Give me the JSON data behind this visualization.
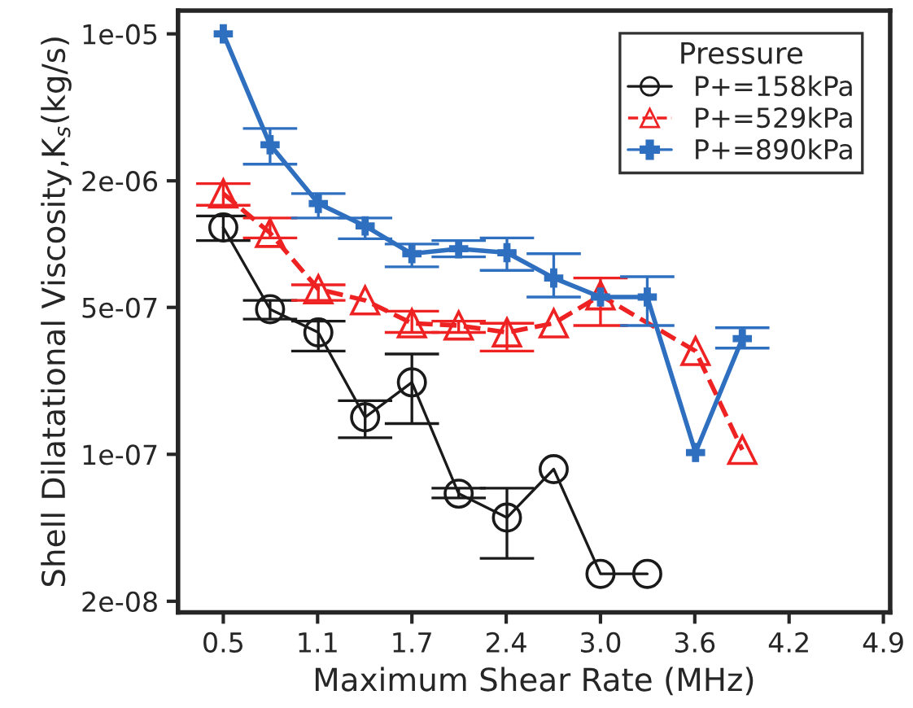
{
  "chart_data": {
    "type": "line",
    "xlabel": "Maximum Shear Rate (MHz)",
    "ylabel": "Shell Dilatational Viscosity,Κ$_{s}$(kg/s)",
    "legend_title": "Pressure",
    "legend": "top right",
    "log": "y",
    "grid": false,
    "xlim": [
      0.2,
      4.92
    ],
    "xticks": [
      0.5,
      {
        "value": 1.125,
        "label": "1.1"
      },
      {
        "value": 1.75,
        "label": "1.7"
      },
      {
        "value": 2.375,
        "label": "2.4"
      },
      {
        "value": 3.0,
        "label": "3.0"
      },
      {
        "value": 3.625,
        "label": "3.6"
      },
      {
        "value": 4.25,
        "label": "4.2"
      },
      {
        "value": 4.875,
        "label": "4.9"
      }
    ],
    "ylim": [
      1.77e-08,
      1.29e-05
    ],
    "yticks": [
      {
        "value": 1e-05,
        "label": "1e-05"
      },
      {
        "value": 2e-06,
        "label": "2e-06"
      },
      {
        "value": 5e-07,
        "label": "5e-07"
      },
      {
        "value": 1e-07,
        "label": "1e-07"
      },
      {
        "value": 2e-08,
        "label": "2e-08"
      }
    ],
    "series": [
      {
        "name": "P+=158kPa",
        "color": "#1a1a1a",
        "marker": "circle",
        "line_style": "solid",
        "x": [
          0.5,
          0.81,
          1.13,
          1.44,
          1.75,
          2.06,
          2.38,
          2.69,
          3.0,
          3.31
        ],
        "values": [
          1.2e-06,
          4.9e-07,
          3.8e-07,
          1.5e-07,
          2.2e-07,
          6.5e-08,
          5e-08,
          8.5e-08,
          2.7e-08,
          2.7e-08
        ],
        "errors": [
          [
            1.04e-06,
            1.36e-06
          ],
          [
            4.4e-07,
            5.4e-07
          ],
          [
            3.1e-07,
            4.3e-07
          ],
          [
            1.2e-07,
            1.8e-07
          ],
          [
            1.4e-07,
            3e-07
          ],
          [
            6.2e-08,
            6.9e-08
          ],
          [
            3.2e-08,
            6.9e-08
          ],
          null,
          null,
          null
        ]
      },
      {
        "name": "P+=529kPa",
        "color": "#ee2222",
        "marker": "triangle",
        "line_style": "dashed",
        "x": [
          0.5,
          0.81,
          1.13,
          1.44,
          1.75,
          2.06,
          2.38,
          2.69,
          3.0,
          3.63,
          3.94
        ],
        "values": [
          1.74e-06,
          1.13e-06,
          6.1e-07,
          5.4e-07,
          4.2e-07,
          4.1e-07,
          3.8e-07,
          4.2e-07,
          5.7e-07,
          3.1e-07,
          1.05e-07
        ],
        "errors": [
          [
            1.53e-06,
            1.94e-06
          ],
          [
            1.07e-06,
            1.33e-06
          ],
          [
            5.4e-07,
            6.4e-07
          ],
          null,
          [
            3.8e-07,
            4.8e-07
          ],
          [
            3.8e-07,
            4.3e-07
          ],
          [
            3.1e-07,
            4.2e-07
          ],
          null,
          [
            4.1e-07,
            6.9e-07
          ],
          null,
          null
        ]
      },
      {
        "name": "P+=890kPa",
        "color": "#2f6fc0",
        "marker": "cross",
        "line_style": "solid",
        "x": [
          0.5,
          0.81,
          1.13,
          1.44,
          1.75,
          2.06,
          2.38,
          2.69,
          3.0,
          3.31,
          3.63,
          3.94
        ],
        "values": [
          1e-05,
          2.97e-06,
          1.56e-06,
          1.22e-06,
          9e-07,
          9.5e-07,
          9.1e-07,
          6.9e-07,
          5.6e-07,
          5.6e-07,
          1.02e-07,
          3.55e-07
        ],
        "errors": [
          null,
          [
            2.4e-06,
            3.55e-06
          ],
          [
            1.33e-06,
            1.74e-06
          ],
          [
            1.06e-06,
            1.33e-06
          ],
          [
            7.8e-07,
            1e-06
          ],
          [
            8.7e-07,
            1.04e-06
          ],
          [
            7.5e-07,
            1.07e-06
          ],
          [
            5.6e-07,
            9e-07
          ],
          null,
          [
            4.1e-07,
            7e-07
          ],
          null,
          [
            3.2e-07,
            4e-07
          ]
        ]
      }
    ]
  }
}
